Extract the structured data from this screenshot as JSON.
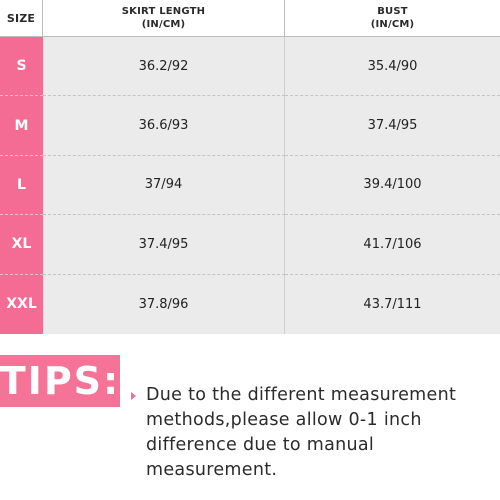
{
  "table": {
    "headers": {
      "size": "SIZE",
      "skirt_line1": "SKIRT LENGTH",
      "skirt_line2": "(IN/CM)",
      "bust_line1": "BUST",
      "bust_line2": "(IN/CM)"
    },
    "rows": [
      {
        "size": "S",
        "skirt": "36.2/92",
        "bust": "35.4/90"
      },
      {
        "size": "M",
        "skirt": "36.6/93",
        "bust": "37.4/95"
      },
      {
        "size": "L",
        "skirt": "37/94",
        "bust": "39.4/100"
      },
      {
        "size": "XL",
        "skirt": "37.4/95",
        "bust": "41.7/106"
      },
      {
        "size": "XXL",
        "skirt": "37.8/96",
        "bust": "43.7/111"
      }
    ]
  },
  "tips": {
    "label": "TIPS:",
    "text": "Due to the different measurement methods,please allow 0-1 inch difference due to manual measurement."
  },
  "colors": {
    "accent_pink": "#f46b94",
    "table_background": "#ebebeb"
  },
  "icons": {
    "tips_bullet": "right-triangle-icon"
  }
}
